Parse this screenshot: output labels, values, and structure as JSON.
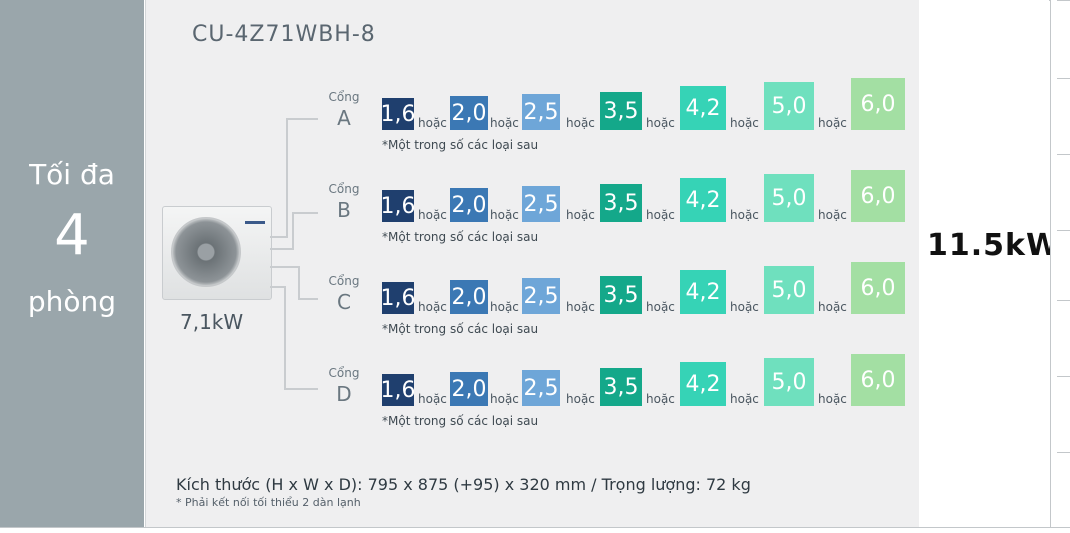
{
  "left": {
    "line1": "Tối đa",
    "line2": "4",
    "line3": "phòng"
  },
  "main": {
    "model": "CU-4Z71WBH-8",
    "outdoor_capacity": "7,1kW",
    "port_word": "Cổng",
    "or_word": "hoặc",
    "note": "*Một trong số các loại sau",
    "ports": [
      "A",
      "B",
      "C",
      "D"
    ],
    "options": [
      "1,6",
      "2,0",
      "2,5",
      "3,5",
      "4,2",
      "5,0",
      "6,0"
    ],
    "option_colors": [
      "#1f3f6e",
      "#3b78b4",
      "#6ea6d8",
      "#14a88a",
      "#36d3b6",
      "#6fe0be",
      "#a3dfa3"
    ],
    "dimensions": "Kích thước (H x W x D): 795 x 875 (+95) x 320 mm / Trọng lượng: 72 kg",
    "dimensions_note": "* Phải kết nối tối thiểu 2 dàn lạnh"
  },
  "right": {
    "total_capacity": "11.5kW"
  }
}
